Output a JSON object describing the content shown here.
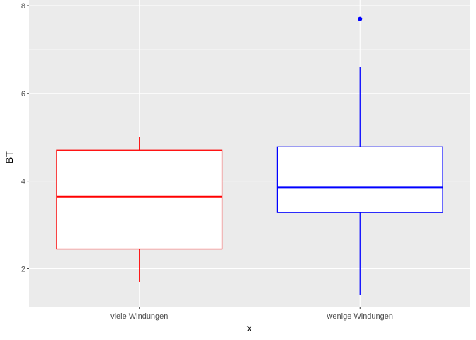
{
  "chart_data": {
    "type": "boxplot",
    "xlabel": "x",
    "ylabel": "BT",
    "ylim": [
      1.1,
      8.0
    ],
    "yticks": [
      2,
      4,
      6,
      8
    ],
    "categories": [
      "viele Windungen",
      "wenige Windungen"
    ],
    "boxes": [
      {
        "category": "viele Windungen",
        "color": "#ff0000",
        "whisker_low": 1.7,
        "q1": 2.45,
        "median": 3.65,
        "q3": 4.7,
        "whisker_high": 5.0,
        "outliers": []
      },
      {
        "category": "wenige Windungen",
        "color": "#0000ff",
        "whisker_low": 1.4,
        "q1": 3.28,
        "median": 3.85,
        "q3": 4.78,
        "whisker_high": 6.6,
        "outliers": [
          7.7
        ]
      }
    ],
    "grid": true,
    "panel_background": "#ebebeb",
    "grid_color": "#ffffff"
  }
}
